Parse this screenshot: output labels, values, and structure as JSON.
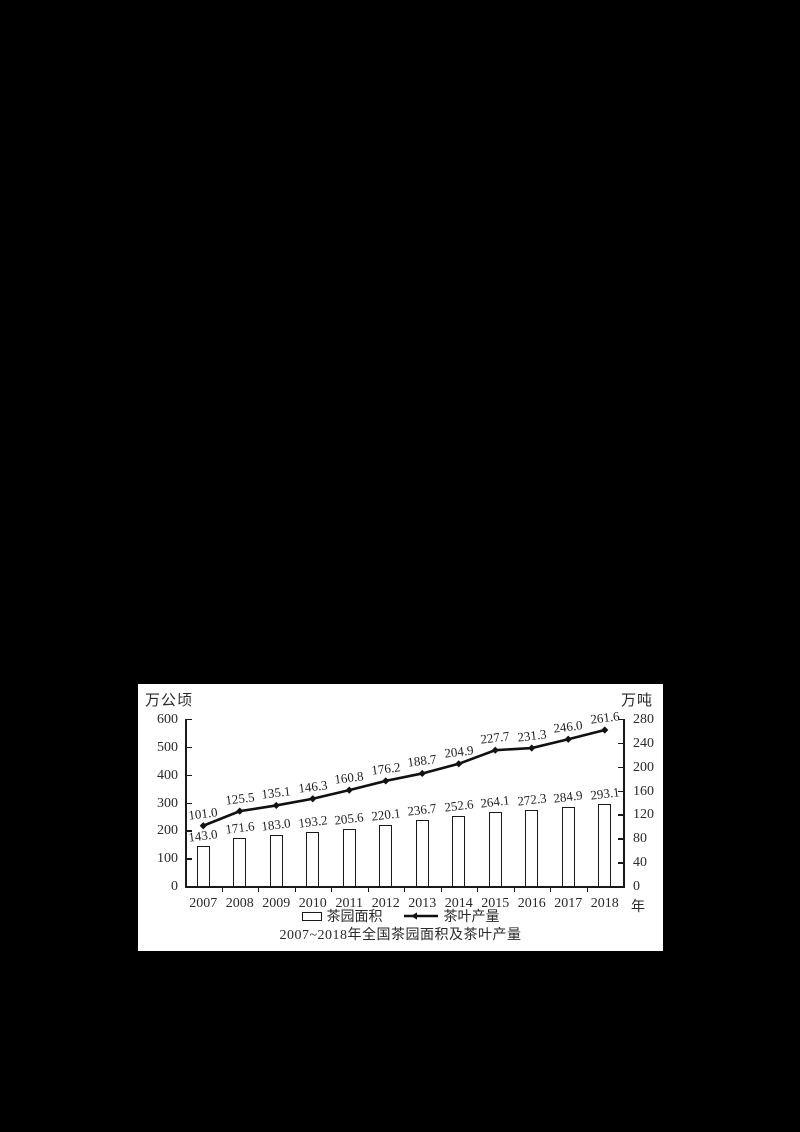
{
  "page": {
    "background": "#000000"
  },
  "chart_data": {
    "type": "combo",
    "title": "2007~2018年全国茶园面积及茶叶产量",
    "left_axis": {
      "label": "万公顷",
      "range": [
        0,
        600
      ],
      "ticks": [
        0,
        100,
        200,
        300,
        400,
        500,
        600
      ]
    },
    "right_axis": {
      "label": "万吨",
      "range": [
        0,
        280
      ],
      "ticks": [
        0,
        40,
        80,
        120,
        160,
        200,
        240,
        280
      ]
    },
    "x_axis": {
      "label": "年",
      "categories": [
        "2007",
        "2008",
        "2009",
        "2010",
        "2011",
        "2012",
        "2013",
        "2014",
        "2015",
        "2016",
        "2017",
        "2018"
      ]
    },
    "series": [
      {
        "name": "茶园面积",
        "type": "bar",
        "axis": "left",
        "values": [
          143.0,
          171.6,
          183.0,
          193.2,
          205.6,
          220.1,
          236.7,
          252.6,
          264.1,
          272.3,
          284.9,
          293.1
        ]
      },
      {
        "name": "茶叶产量",
        "type": "line",
        "axis": "right",
        "values": [
          101.0,
          125.5,
          135.1,
          146.3,
          160.8,
          176.2,
          188.7,
          204.9,
          227.7,
          231.3,
          246.0,
          261.6
        ]
      }
    ],
    "legend": {
      "position": "bottom",
      "entries": [
        "茶园面积",
        "茶叶产量"
      ]
    },
    "grid": false,
    "colors": {
      "bar_fill": "#ffffff",
      "bar_border": "#1a1a1a",
      "line": "#111111",
      "text": "#2a2a2a",
      "panel": "#ffffff",
      "page": "#000000"
    }
  }
}
